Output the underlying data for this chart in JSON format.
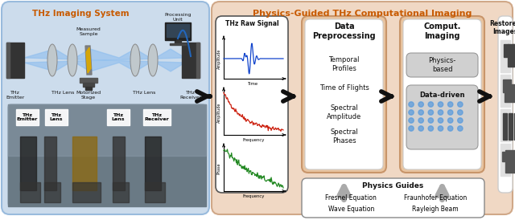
{
  "fig_width": 6.4,
  "fig_height": 2.74,
  "dpi": 100,
  "left_panel_color": "#ccdcec",
  "right_panel_color": "#f0d8c4",
  "inner_box_color": "#c8956a",
  "inner_box_fill": "#e8c4a0",
  "white_box_color": "#ffffff",
  "light_gray_box": "#d0d0d0",
  "dark_gray_box": "#b8b8b8",
  "title_left": "THz Imaging System",
  "title_right": "Physics-Guided THz Computational Imaging",
  "title_color": "#c85a00",
  "raw_signal_title": "THz Raw Signal",
  "data_prep_title": "Data\nPreprocessing",
  "comput_title": "Comput.\nImaging",
  "restored_title": "Restored\nImages",
  "physics_guides_title": "Physics Guides",
  "data_prep_items": [
    "Temporal\nProfiles",
    "Time of Flights",
    "Spectral\nAmplitude",
    "Spectral\nPhases"
  ],
  "physics_guides_items": [
    "Fresnel Equation",
    "Fraunhofer Equation",
    "Wave Equation",
    "Rayleigh Beam"
  ],
  "physics_based_label": "Physics-\nbased",
  "data_driven_label": "Data-driven",
  "blue_signal_color": "#1144cc",
  "red_signal_color": "#cc2211",
  "green_signal_color": "#228822",
  "arrow_color": "#111111",
  "gray_arrow_color": "#aaaaaa"
}
